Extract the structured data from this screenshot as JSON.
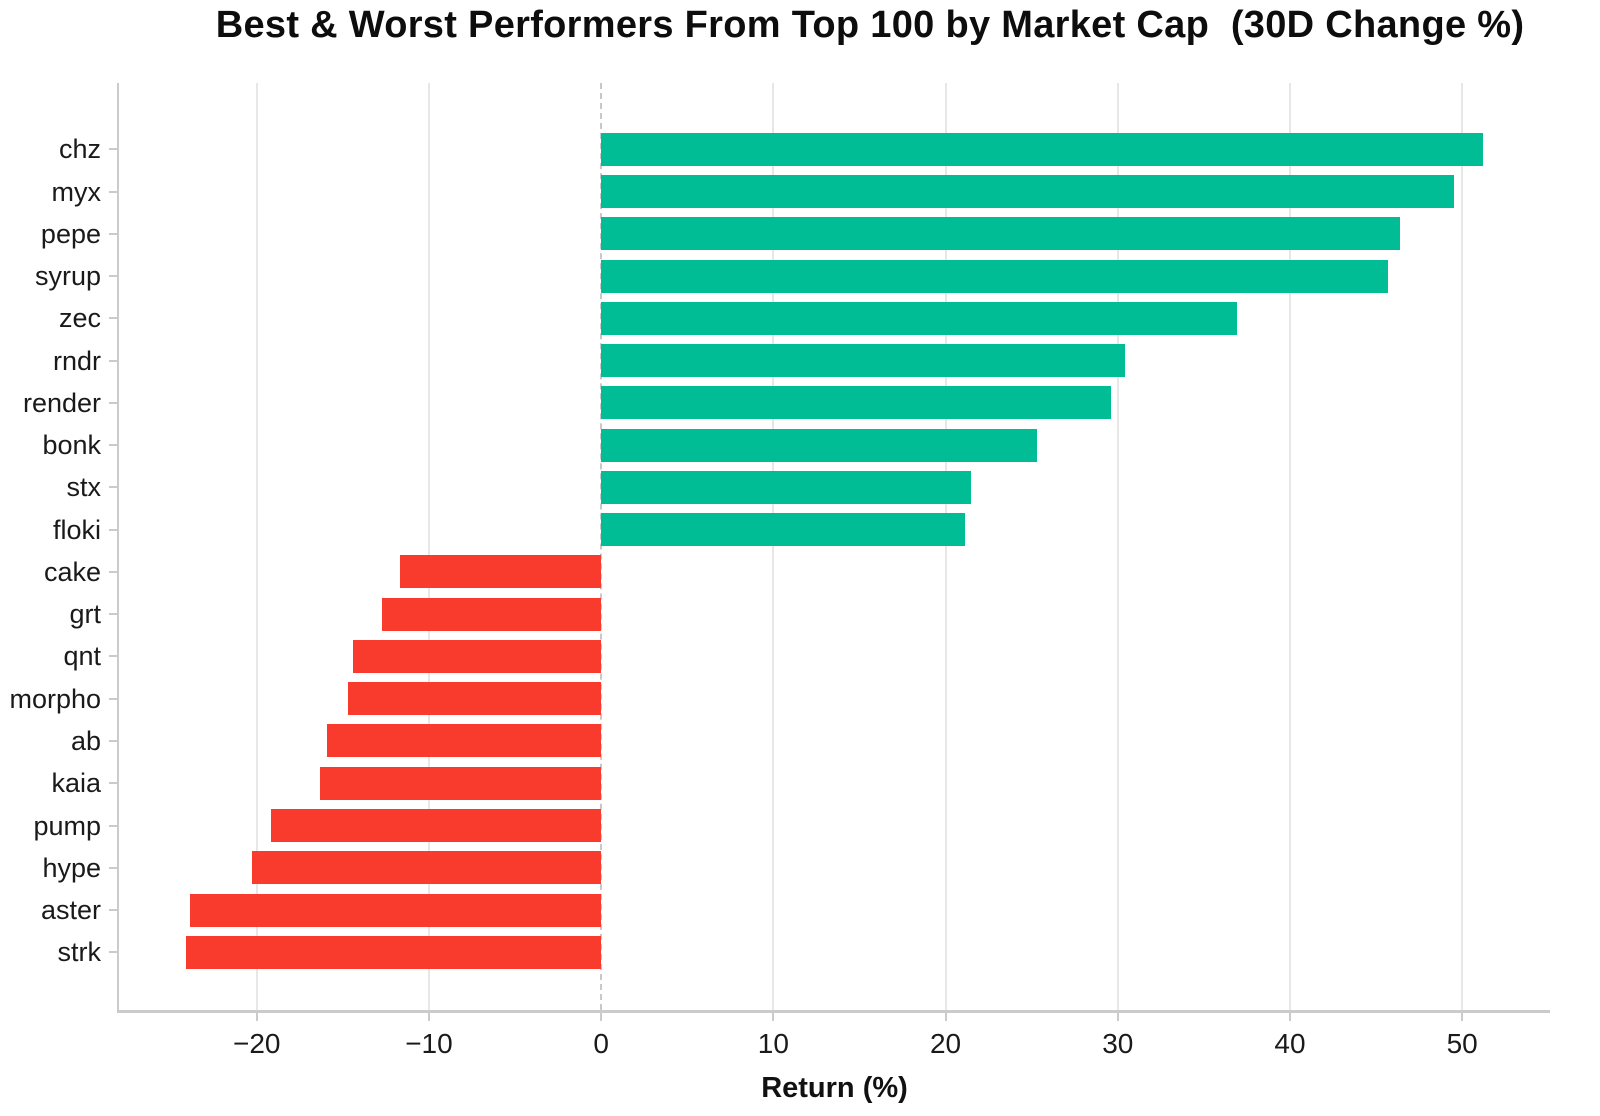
{
  "title": "Best & Worst Performers From Top 100 by Market Cap  (30D Change %)",
  "colors": {
    "positive": "#00bd96",
    "negative": "#f93b2d",
    "grid": "#e7e7e7",
    "zero_line": "#c8c8c8",
    "spine": "#cbcbcb",
    "text": "#1a1a1a"
  },
  "chart_data": {
    "type": "bar",
    "orientation": "horizontal",
    "title": "Best & Worst Performers From Top 100 by Market Cap  (30D Change %)",
    "xlabel": "Return (%)",
    "ylabel": "",
    "grid": true,
    "legend": null,
    "xlim": [
      -28,
      55.1
    ],
    "xtick_values": [
      -20,
      -10,
      0,
      10,
      20,
      30,
      40,
      50
    ],
    "xtick_labels": [
      "−20",
      "−10",
      "0",
      "10",
      "20",
      "30",
      "40",
      "50"
    ],
    "categories": [
      "chz",
      "myx",
      "pepe",
      "syrup",
      "zec",
      "rndr",
      "render",
      "bonk",
      "stx",
      "floki",
      "cake",
      "grt",
      "qnt",
      "morpho",
      "ab",
      "kaia",
      "pump",
      "hype",
      "aster",
      "strk"
    ],
    "values": [
      51.2,
      49.5,
      46.4,
      45.7,
      36.9,
      30.4,
      29.6,
      25.3,
      21.5,
      21.1,
      -11.7,
      -12.7,
      -14.4,
      -14.7,
      -15.9,
      -16.3,
      -19.2,
      -20.3,
      -23.9,
      -24.1
    ],
    "positive_color": "#00bd96",
    "negative_color": "#f93b2d"
  }
}
